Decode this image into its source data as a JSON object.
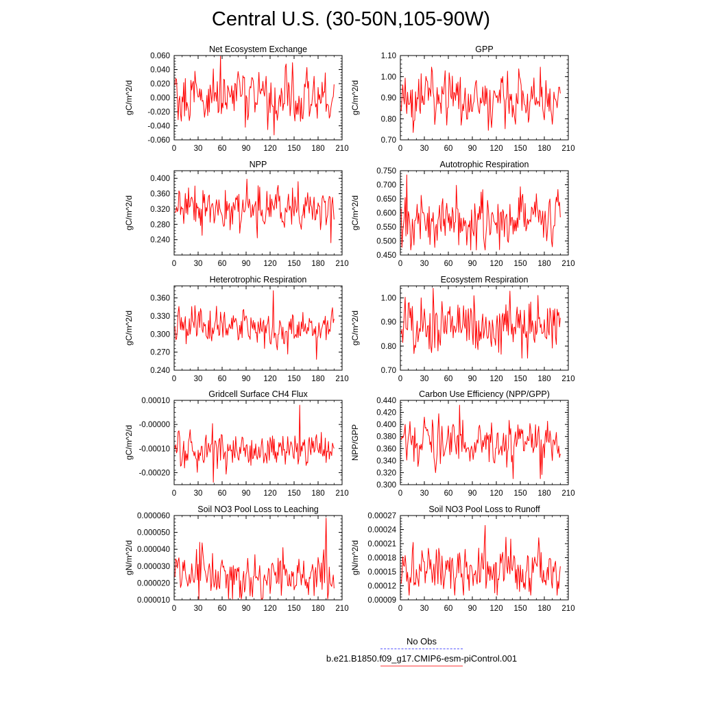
{
  "title": "Central U.S. (30-50N,105-90W)",
  "legend": [
    {
      "label": "No Obs",
      "color": "#5555ff",
      "style": "dashed"
    },
    {
      "label": "b.e21.B1850.f09_g17.CMIP6-esm-piControl.001",
      "color": "#ff0000",
      "style": "solid"
    }
  ],
  "chart_data": [
    {
      "type": "line",
      "title": "Net Ecosystem Exchange",
      "ylabel": "gC/m^2/d",
      "xlim": [
        0,
        210
      ],
      "xticks": [
        "0",
        "30",
        "60",
        "90",
        "120",
        "150",
        "180",
        "210"
      ],
      "ylim": [
        -0.06,
        0.06
      ],
      "yticks": [
        "-0.060",
        "-0.040",
        "-0.020",
        "0.000",
        "0.020",
        "0.040",
        "0.060"
      ],
      "series": [
        {
          "color": "#ff0000",
          "n": 200,
          "mean": 0.002,
          "amp": 0.018,
          "min": -0.053,
          "max": 0.059
        }
      ]
    },
    {
      "type": "line",
      "title": "GPP",
      "ylabel": "gC/m^2/d",
      "xlim": [
        0,
        210
      ],
      "xticks": [
        "0",
        "30",
        "60",
        "90",
        "120",
        "150",
        "180",
        "210"
      ],
      "ylim": [
        0.7,
        1.1
      ],
      "yticks": [
        "0.70",
        "0.80",
        "0.90",
        "1.00",
        "1.10"
      ],
      "series": [
        {
          "color": "#ff0000",
          "n": 200,
          "mean": 0.895,
          "amp": 0.06,
          "min": 0.735,
          "max": 1.045
        }
      ]
    },
    {
      "type": "line",
      "title": "NPP",
      "ylabel": "gC/m^2/d",
      "xlim": [
        0,
        210
      ],
      "xticks": [
        "0",
        "30",
        "60",
        "90",
        "120",
        "150",
        "180",
        "210"
      ],
      "ylim": [
        0.2,
        0.42
      ],
      "yticks": [
        "0.240",
        "0.280",
        "0.320",
        "0.360",
        "0.400"
      ],
      "series": [
        {
          "color": "#ff0000",
          "n": 200,
          "mean": 0.322,
          "amp": 0.028,
          "min": 0.232,
          "max": 0.398
        }
      ]
    },
    {
      "type": "line",
      "title": "Autotrophic Respiration",
      "ylabel": "gC/m^2/d",
      "xlim": [
        0,
        210
      ],
      "xticks": [
        "0",
        "30",
        "60",
        "90",
        "120",
        "150",
        "180",
        "210"
      ],
      "ylim": [
        0.45,
        0.75
      ],
      "yticks": [
        "0.450",
        "0.500",
        "0.550",
        "0.600",
        "0.650",
        "0.700",
        "0.750"
      ],
      "series": [
        {
          "color": "#ff0000",
          "n": 200,
          "mean": 0.575,
          "amp": 0.045,
          "min": 0.468,
          "max": 0.735
        }
      ]
    },
    {
      "type": "line",
      "title": "Heterotrophic Respiration",
      "ylabel": "gC/m^2/d",
      "xlim": [
        0,
        210
      ],
      "xticks": [
        "0",
        "30",
        "60",
        "90",
        "120",
        "150",
        "180",
        "210"
      ],
      "ylim": [
        0.24,
        0.38
      ],
      "yticks": [
        "0.240",
        "0.270",
        "0.300",
        "0.330",
        "0.360"
      ],
      "series": [
        {
          "color": "#ff0000",
          "n": 200,
          "mean": 0.313,
          "amp": 0.016,
          "min": 0.258,
          "max": 0.372
        }
      ]
    },
    {
      "type": "line",
      "title": "Ecosystem Respiration",
      "ylabel": "gC/m^2/d",
      "xlim": [
        0,
        210
      ],
      "xticks": [
        "0",
        "30",
        "60",
        "90",
        "120",
        "150",
        "180",
        "210"
      ],
      "ylim": [
        0.7,
        1.05
      ],
      "yticks": [
        "0.70",
        "0.80",
        "0.90",
        "1.00"
      ],
      "series": [
        {
          "color": "#ff0000",
          "n": 200,
          "mean": 0.89,
          "amp": 0.06,
          "min": 0.75,
          "max": 1.04
        }
      ]
    },
    {
      "type": "line",
      "title": "Gridcell Surface CH4 Flux",
      "ylabel": "gC/m^2/d",
      "xlim": [
        0,
        210
      ],
      "xticks": [
        "0",
        "30",
        "60",
        "90",
        "120",
        "150",
        "180",
        "210"
      ],
      "ylim": [
        -0.00025,
        0.0001
      ],
      "yticks": [
        "-0.00020",
        "-0.00010",
        "-0.00000",
        "0.00010"
      ],
      "series": [
        {
          "color": "#ff0000",
          "n": 200,
          "mean": -0.00011,
          "amp": 4e-05,
          "min": -0.00024,
          "max": 8e-05
        }
      ]
    },
    {
      "type": "line",
      "title": "Carbon Use Efficiency (NPP/GPP)",
      "ylabel": "NPP/GPP",
      "xlim": [
        0,
        210
      ],
      "xticks": [
        "0",
        "30",
        "60",
        "90",
        "120",
        "150",
        "180",
        "210"
      ],
      "ylim": [
        0.3,
        0.44
      ],
      "yticks": [
        "0.300",
        "0.320",
        "0.340",
        "0.360",
        "0.380",
        "0.400",
        "0.420",
        "0.440"
      ],
      "series": [
        {
          "color": "#ff0000",
          "n": 200,
          "mean": 0.369,
          "amp": 0.018,
          "min": 0.31,
          "max": 0.432
        }
      ]
    },
    {
      "type": "line",
      "title": "Soil NO3 Pool Loss to Leaching",
      "ylabel": "gN/m^2/d",
      "xlim": [
        0,
        210
      ],
      "xticks": [
        "0",
        "30",
        "60",
        "90",
        "120",
        "150",
        "180",
        "210"
      ],
      "ylim": [
        1e-05,
        6e-05
      ],
      "yticks": [
        "0.000010",
        "0.000020",
        "0.000030",
        "0.000040",
        "0.000050",
        "0.000060"
      ],
      "series": [
        {
          "color": "#ff0000",
          "n": 200,
          "mean": 2.4e-05,
          "amp": 6.5e-06,
          "min": 1.05e-05,
          "max": 5.85e-05
        }
      ]
    },
    {
      "type": "line",
      "title": "Soil NO3 Pool Loss to Runoff",
      "ylabel": "gN/m^2/d",
      "xlim": [
        0,
        210
      ],
      "xticks": [
        "0",
        "30",
        "60",
        "90",
        "120",
        "150",
        "180",
        "210"
      ],
      "ylim": [
        9e-05,
        0.00027
      ],
      "yticks": [
        "0.00009",
        "0.00012",
        "0.00015",
        "0.00018",
        "0.00021",
        "0.00024",
        "0.00027"
      ],
      "series": [
        {
          "color": "#ff0000",
          "n": 200,
          "mean": 0.000152,
          "amp": 2.6e-05,
          "min": 0.0001,
          "max": 0.000249
        }
      ]
    }
  ]
}
